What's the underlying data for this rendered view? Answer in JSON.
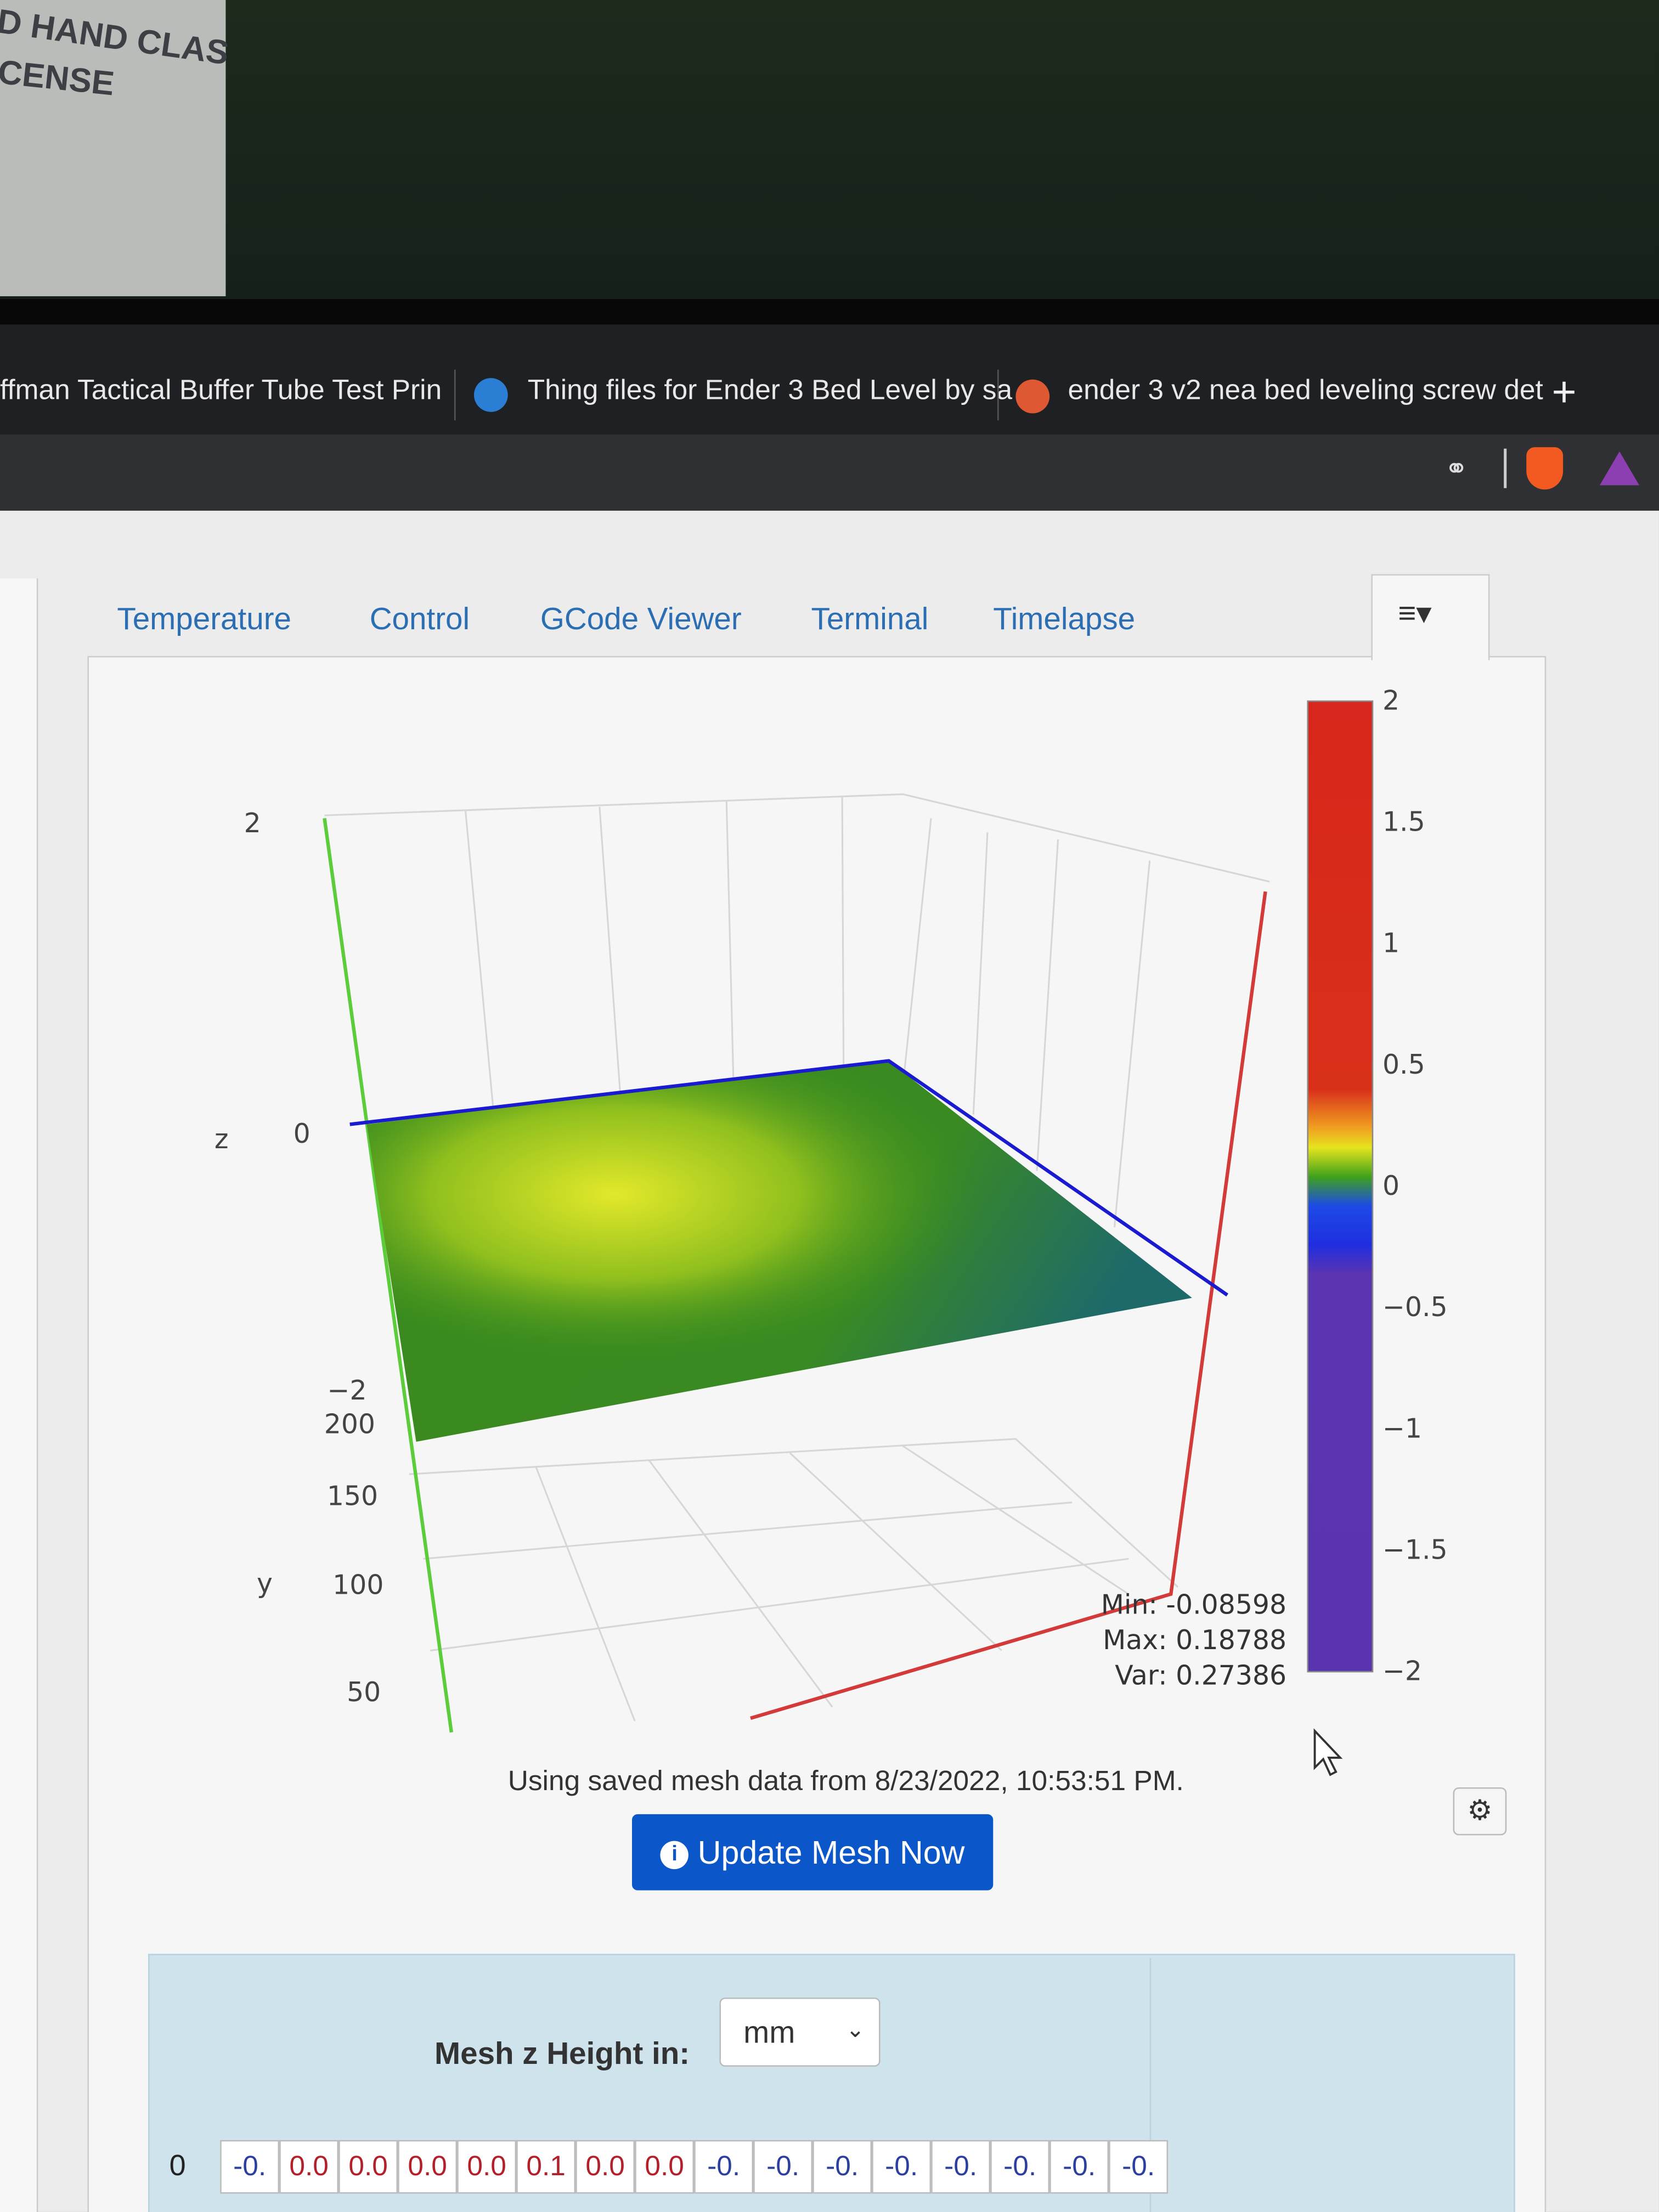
{
  "photo_text": [
    "D HAND CLAS",
    "CENSE"
  ],
  "browser_tabs": [
    "ffman Tactical Buffer Tube Test Prin",
    "Thing files for Ender 3 Bed Level by sa",
    "ender 3 v2 nea bed leveling screw det"
  ],
  "nav_tabs": [
    "Temperature",
    "Control",
    "GCode Viewer",
    "Terminal",
    "Timelapse"
  ],
  "plot": {
    "z_axis_title": "z",
    "z_ticks": [
      "2",
      "0",
      "−2"
    ],
    "y_axis_title": "y",
    "y_ticks": [
      "200",
      "150",
      "100",
      "50"
    ],
    "colorbar_ticks": [
      "2",
      "1.5",
      "1",
      "0.5",
      "0",
      "−0.5",
      "−1",
      "−1.5",
      "−2"
    ],
    "stats": [
      "Min: -0.08598",
      "Max: 0.18788",
      "Var: 0.27386"
    ]
  },
  "status": "Using saved mesh data from 8/23/2022, 10:53:51 PM.",
  "update_button": "Update Mesh Now",
  "mesh_units_label": "Mesh z Height in:",
  "mesh_units_value": "mm",
  "mesh_row": [
    "0",
    "-0.",
    "0.0",
    "0.0",
    "0.0",
    "0.0",
    "0.1",
    "0.0",
    "0.0",
    "-0.",
    "-0.",
    "-0.",
    "-0.",
    "-0.",
    "-0.",
    "-0.",
    "-0."
  ]
}
